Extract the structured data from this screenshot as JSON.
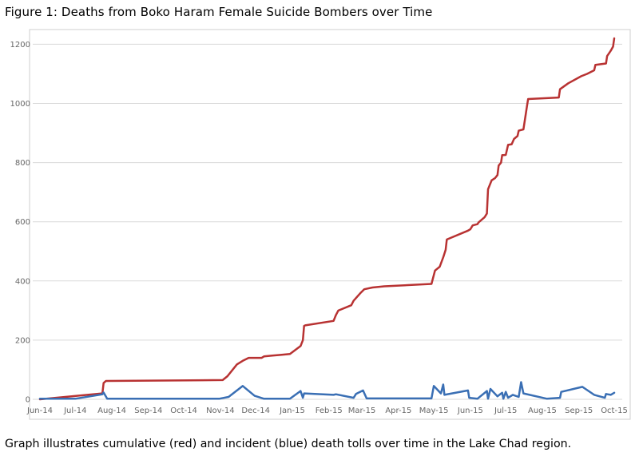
{
  "figure": {
    "title": "Figure 1: Deaths from Boko Haram Female Suicide Bombers over Time",
    "caption": "Graph illustrates cumulative (red) and incident (blue) death tolls over time in the Lake Chad region."
  },
  "chart_data": {
    "type": "line",
    "title": "",
    "xlabel": "",
    "ylabel": "",
    "x_range": [
      "2014-06-01",
      "2015-10-01"
    ],
    "ylim": [
      0,
      1220
    ],
    "y_ticks": [
      0,
      200,
      400,
      600,
      800,
      1000,
      1200
    ],
    "x_tick_labels": [
      "Jun-14",
      "Jul-14",
      "Aug-14",
      "Sep-14",
      "Oct-14",
      "Nov-14",
      "Dec-14",
      "Jan-15",
      "Feb-15",
      "Mar-15",
      "Apr-15",
      "May-15",
      "Jun-15",
      "Jul-15",
      "Aug-15",
      "Sep-15",
      "Oct-15"
    ],
    "x_tick_dates": [
      "2014-06-01",
      "2014-07-01",
      "2014-08-01",
      "2014-09-01",
      "2014-10-01",
      "2014-11-01",
      "2014-12-01",
      "2015-01-01",
      "2015-02-01",
      "2015-03-01",
      "2015-04-01",
      "2015-05-01",
      "2015-06-01",
      "2015-07-01",
      "2015-08-01",
      "2015-09-01",
      "2015-10-01"
    ],
    "grid": {
      "horizontal": true,
      "vertical": false
    },
    "legend": "none",
    "series": [
      {
        "color": "#b83232",
        "points": [
          [
            "2014-06-01",
            0
          ],
          [
            "2014-07-24",
            20
          ],
          [
            "2014-07-25",
            55
          ],
          [
            "2014-07-27",
            62
          ],
          [
            "2014-07-28",
            62
          ],
          [
            "2014-11-03",
            65
          ],
          [
            "2014-11-07",
            78
          ],
          [
            "2014-11-15",
            118
          ],
          [
            "2014-11-20",
            130
          ],
          [
            "2014-11-25",
            140
          ],
          [
            "2014-12-06",
            140
          ],
          [
            "2014-12-08",
            145
          ],
          [
            "2014-12-15",
            148
          ],
          [
            "2014-12-22",
            150
          ],
          [
            "2014-12-30",
            153
          ],
          [
            "2015-01-08",
            180
          ],
          [
            "2015-01-10",
            200
          ],
          [
            "2015-01-11",
            248
          ],
          [
            "2015-01-12",
            250
          ],
          [
            "2015-02-05",
            265
          ],
          [
            "2015-02-07",
            285
          ],
          [
            "2015-02-09",
            300
          ],
          [
            "2015-02-20",
            318
          ],
          [
            "2015-02-22",
            333
          ],
          [
            "2015-02-28",
            360
          ],
          [
            "2015-03-03",
            372
          ],
          [
            "2015-03-10",
            378
          ],
          [
            "2015-03-20",
            382
          ],
          [
            "2015-04-29",
            390
          ],
          [
            "2015-05-02",
            435
          ],
          [
            "2015-05-06",
            448
          ],
          [
            "2015-05-09",
            480
          ],
          [
            "2015-05-11",
            505
          ],
          [
            "2015-05-12",
            540
          ],
          [
            "2015-05-30",
            570
          ],
          [
            "2015-06-01",
            575
          ],
          [
            "2015-06-03",
            588
          ],
          [
            "2015-06-07",
            592
          ],
          [
            "2015-06-08",
            598
          ],
          [
            "2015-06-13",
            615
          ],
          [
            "2015-06-15",
            628
          ],
          [
            "2015-06-15",
            630
          ],
          [
            "2015-06-16",
            710
          ],
          [
            "2015-06-19",
            740
          ],
          [
            "2015-06-22",
            748
          ],
          [
            "2015-06-24",
            758
          ],
          [
            "2015-06-25",
            790
          ],
          [
            "2015-06-27",
            800
          ],
          [
            "2015-06-28",
            825
          ],
          [
            "2015-06-29",
            825
          ],
          [
            "2015-07-01",
            826
          ],
          [
            "2015-07-03",
            860
          ],
          [
            "2015-07-06",
            862
          ],
          [
            "2015-07-08",
            880
          ],
          [
            "2015-07-11",
            890
          ],
          [
            "2015-07-12",
            908
          ],
          [
            "2015-07-16",
            912
          ],
          [
            "2015-07-18",
            965
          ],
          [
            "2015-07-19",
            990
          ],
          [
            "2015-07-20",
            1015
          ],
          [
            "2015-08-15",
            1020
          ],
          [
            "2015-08-16",
            1048
          ],
          [
            "2015-08-23",
            1068
          ],
          [
            "2015-09-03",
            1092
          ],
          [
            "2015-09-08",
            1100
          ],
          [
            "2015-09-14",
            1112
          ],
          [
            "2015-09-15",
            1130
          ],
          [
            "2015-09-24",
            1135
          ],
          [
            "2015-09-25",
            1160
          ],
          [
            "2015-09-28",
            1178
          ],
          [
            "2015-09-30",
            1192
          ],
          [
            "2015-10-01",
            1220
          ]
        ]
      },
      {
        "color": "#3a6fb4",
        "points": [
          [
            "2014-06-01",
            2
          ],
          [
            "2014-07-01",
            2
          ],
          [
            "2014-07-24",
            17
          ],
          [
            "2014-07-25",
            23
          ],
          [
            "2014-07-28",
            2
          ],
          [
            "2014-10-31",
            2
          ],
          [
            "2014-11-08",
            8
          ],
          [
            "2014-11-20",
            45
          ],
          [
            "2014-11-30",
            12
          ],
          [
            "2014-12-08",
            2
          ],
          [
            "2014-12-30",
            2
          ],
          [
            "2015-01-08",
            28
          ],
          [
            "2015-01-10",
            5
          ],
          [
            "2015-01-11",
            20
          ],
          [
            "2015-02-05",
            15
          ],
          [
            "2015-02-07",
            17
          ],
          [
            "2015-02-22",
            5
          ],
          [
            "2015-02-24",
            18
          ],
          [
            "2015-03-02",
            30
          ],
          [
            "2015-03-05",
            3
          ],
          [
            "2015-04-29",
            3
          ],
          [
            "2015-05-01",
            45
          ],
          [
            "2015-05-07",
            20
          ],
          [
            "2015-05-09",
            50
          ],
          [
            "2015-05-10",
            15
          ],
          [
            "2015-05-30",
            30
          ],
          [
            "2015-05-31",
            5
          ],
          [
            "2015-06-07",
            2
          ],
          [
            "2015-06-15",
            28
          ],
          [
            "2015-06-16",
            2
          ],
          [
            "2015-06-18",
            35
          ],
          [
            "2015-06-24",
            10
          ],
          [
            "2015-06-28",
            22
          ],
          [
            "2015-06-29",
            2
          ],
          [
            "2015-07-01",
            25
          ],
          [
            "2015-07-03",
            5
          ],
          [
            "2015-07-07",
            15
          ],
          [
            "2015-07-12",
            8
          ],
          [
            "2015-07-14",
            58
          ],
          [
            "2015-07-16",
            20
          ],
          [
            "2015-08-05",
            2
          ],
          [
            "2015-08-16",
            5
          ],
          [
            "2015-08-17",
            25
          ],
          [
            "2015-09-04",
            42
          ],
          [
            "2015-09-14",
            15
          ],
          [
            "2015-09-23",
            5
          ],
          [
            "2015-09-24",
            18
          ],
          [
            "2015-09-28",
            15
          ],
          [
            "2015-10-01",
            22
          ]
        ]
      }
    ]
  }
}
